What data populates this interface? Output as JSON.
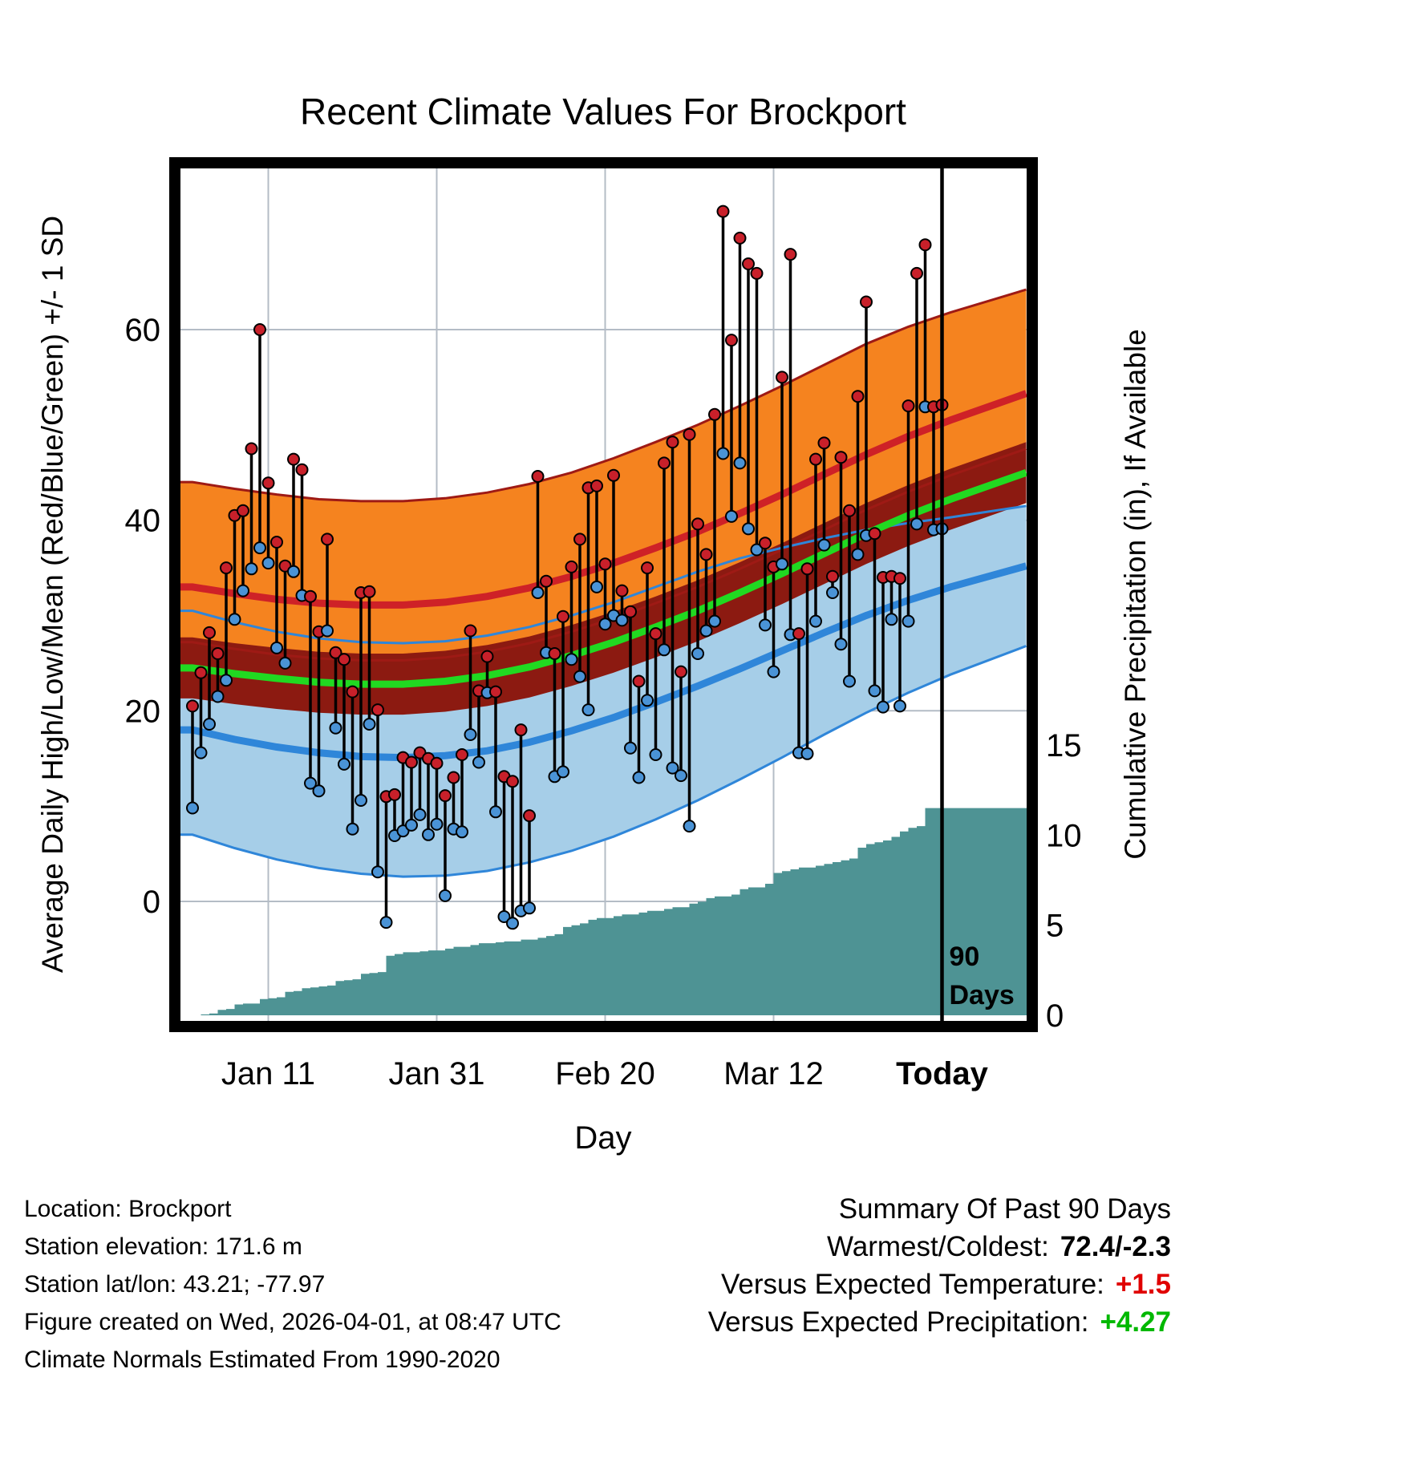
{
  "title": "Recent Climate Values For Brockport",
  "footer": {
    "left_lines": [
      "Location: Brockport",
      "Station elevation: 171.6 m",
      "Station lat/lon: 43.21; -77.97",
      "Figure created on Wed, 2026-04-01, at 08:47 UTC",
      "Climate Normals Estimated From 1990-2020"
    ],
    "summary": {
      "title": "Summary Of Past 90 Days",
      "warmest_label": "Warmest/Coldest:",
      "warmest_value": "72.4/-2.3",
      "temp_label": "Versus Expected Temperature:",
      "temp_value": "+1.5",
      "precip_label": "Versus Expected Precipitation:",
      "precip_value": "+4.27"
    }
  },
  "chart_data": {
    "type": "line",
    "title": "Recent Climate Values For Brockport",
    "xlabel": "Day",
    "ylabel_left": "Average Daily High/Low/Mean (Red/Blue/Green) +/- 1 SD",
    "ylabel_right": "Cumulative Precipitation (in), If Available",
    "left_ticks": [
      0,
      20,
      40,
      60
    ],
    "right_ticks": [
      0,
      5,
      10,
      15
    ],
    "x_ticks": [
      {
        "label": "Jan 11",
        "day": 9,
        "bold": false
      },
      {
        "label": "Jan 31",
        "day": 29,
        "bold": false
      },
      {
        "label": "Feb 20",
        "day": 49,
        "bold": false
      },
      {
        "label": "Mar 12",
        "day": 69,
        "bold": false
      },
      {
        "label": "Today",
        "day": 89,
        "bold": true
      }
    ],
    "temp_ylim": [
      -12.5,
      77
    ],
    "precip_ylim": [
      0,
      15
    ],
    "today_day": 89,
    "today_label_lines": [
      "90",
      "Days"
    ],
    "daily_high": [
      20.5,
      24.0,
      28.2,
      26.0,
      35.0,
      40.5,
      41.0,
      47.5,
      60.0,
      43.9,
      37.7,
      35.2,
      46.4,
      45.3,
      32.0,
      28.3,
      38.0,
      26.1,
      25.4,
      22.0,
      32.4,
      32.5,
      20.1,
      11.0,
      11.2,
      15.1,
      14.6,
      15.6,
      15.0,
      14.5,
      11.1,
      13.0,
      15.4,
      28.4,
      22.1,
      25.7,
      22.0,
      13.1,
      12.6,
      18.0,
      9.0,
      44.6,
      33.6,
      26.0,
      29.9,
      35.1,
      38.0,
      43.4,
      43.6,
      35.4,
      44.7,
      32.6,
      30.4,
      23.1,
      35.0,
      28.1,
      46.0,
      48.2,
      24.1,
      49.0,
      39.6,
      36.4,
      51.1,
      72.4,
      58.9,
      69.6,
      66.9,
      65.9,
      37.6,
      35.1,
      55.0,
      67.9,
      28.1,
      34.9,
      46.4,
      48.1,
      34.1,
      46.6,
      41.0,
      53.0,
      62.9,
      38.6,
      34.0,
      34.1,
      33.9,
      52.0,
      65.9,
      68.9,
      51.9,
      52.1
    ],
    "daily_low": [
      9.8,
      15.6,
      18.6,
      21.5,
      23.2,
      29.6,
      32.6,
      34.9,
      37.1,
      35.5,
      26.6,
      25.0,
      34.6,
      32.1,
      12.4,
      11.6,
      28.4,
      18.2,
      14.4,
      7.6,
      10.6,
      18.6,
      3.1,
      -2.2,
      6.9,
      7.4,
      8.0,
      9.1,
      7.0,
      8.1,
      0.6,
      7.6,
      7.3,
      17.5,
      14.6,
      21.9,
      9.4,
      -1.6,
      -2.3,
      -1.0,
      -0.7,
      32.4,
      26.1,
      13.1,
      13.6,
      25.4,
      23.6,
      20.1,
      33.0,
      29.1,
      30.0,
      29.5,
      16.1,
      13.0,
      21.1,
      15.4,
      26.4,
      14.0,
      13.2,
      7.9,
      26.0,
      28.4,
      29.4,
      47.0,
      40.4,
      46.0,
      39.1,
      36.9,
      29.0,
      24.1,
      35.4,
      28.0,
      15.6,
      15.5,
      29.4,
      37.4,
      32.4,
      27.0,
      23.1,
      36.4,
      38.4,
      22.1,
      20.4,
      29.6,
      20.5,
      29.4,
      39.6,
      51.9,
      39.0,
      39.1
    ],
    "cumulative_precip_in": [
      0,
      0.05,
      0.1,
      0.3,
      0.35,
      0.6,
      0.65,
      0.65,
      0.9,
      0.95,
      1.0,
      1.3,
      1.35,
      1.5,
      1.55,
      1.6,
      1.65,
      1.9,
      1.95,
      2.0,
      2.3,
      2.35,
      2.4,
      3.3,
      3.4,
      3.5,
      3.5,
      3.55,
      3.6,
      3.6,
      3.7,
      3.8,
      3.8,
      3.9,
      4.0,
      4.0,
      4.05,
      4.1,
      4.1,
      4.2,
      4.2,
      4.3,
      4.4,
      4.5,
      4.9,
      5.0,
      5.1,
      5.3,
      5.4,
      5.4,
      5.5,
      5.6,
      5.6,
      5.7,
      5.8,
      5.8,
      5.9,
      6.0,
      6.0,
      6.2,
      6.3,
      6.5,
      6.6,
      6.6,
      6.7,
      7.0,
      7.1,
      7.1,
      7.3,
      7.9,
      8.0,
      8.1,
      8.2,
      8.2,
      8.3,
      8.4,
      8.5,
      8.6,
      8.7,
      9.3,
      9.5,
      9.6,
      9.7,
      9.9,
      10.2,
      10.4,
      10.5,
      11.5,
      11.5,
      11.5
    ],
    "normals": {
      "days": [
        0,
        5,
        10,
        15,
        20,
        25,
        30,
        35,
        40,
        45,
        50,
        55,
        60,
        65,
        70,
        75,
        80,
        85,
        90,
        99
      ],
      "high_upper": [
        44.0,
        43.3,
        42.7,
        42.2,
        42.0,
        42.0,
        42.3,
        42.9,
        43.8,
        45.0,
        46.5,
        48.2,
        50.0,
        52.0,
        54.1,
        56.3,
        58.5,
        60.3,
        61.8,
        64.2
      ],
      "high_mean": [
        33.0,
        32.3,
        31.7,
        31.3,
        31.1,
        31.1,
        31.4,
        32.0,
        32.9,
        34.1,
        35.5,
        37.1,
        38.8,
        40.7,
        42.7,
        44.8,
        46.9,
        48.8,
        50.5,
        53.3
      ],
      "high_lower": [
        27.2,
        26.5,
        25.9,
        25.5,
        25.3,
        25.3,
        25.6,
        26.2,
        27.1,
        28.3,
        29.7,
        31.3,
        33.0,
        34.9,
        36.9,
        39.0,
        41.1,
        43.0,
        44.7,
        47.5
      ],
      "mean": [
        24.5,
        23.9,
        23.4,
        23.0,
        22.8,
        22.8,
        23.1,
        23.7,
        24.6,
        25.8,
        27.2,
        28.8,
        30.5,
        32.4,
        34.4,
        36.5,
        38.6,
        40.5,
        42.2,
        45.0
      ],
      "mean_upper": [
        27.7,
        27.1,
        26.6,
        26.2,
        26.0,
        26.0,
        26.3,
        26.9,
        27.8,
        29.0,
        30.4,
        32.0,
        33.7,
        35.6,
        37.6,
        39.7,
        41.8,
        43.7,
        45.4,
        48.2
      ],
      "mean_lower": [
        21.3,
        20.7,
        20.2,
        19.8,
        19.6,
        19.6,
        19.9,
        20.5,
        21.4,
        22.6,
        24.0,
        25.6,
        27.3,
        29.2,
        31.2,
        33.3,
        35.4,
        37.3,
        39.0,
        41.8
      ],
      "low_upper": [
        30.5,
        29.3,
        28.3,
        27.6,
        27.2,
        27.1,
        27.3,
        27.9,
        28.8,
        30.0,
        31.4,
        33.0,
        34.6,
        36.0,
        37.1,
        38.1,
        39.0,
        39.7,
        40.3,
        41.5
      ],
      "low_mean": [
        18.0,
        17.0,
        16.2,
        15.6,
        15.2,
        15.1,
        15.3,
        15.8,
        16.7,
        17.9,
        19.3,
        20.9,
        22.6,
        24.4,
        26.3,
        28.2,
        30.0,
        31.6,
        33.0,
        35.2
      ],
      "low_lower": [
        7.0,
        5.6,
        4.4,
        3.5,
        2.9,
        2.6,
        2.7,
        3.2,
        4.1,
        5.3,
        6.8,
        8.6,
        10.6,
        12.8,
        15.1,
        17.5,
        19.8,
        21.9,
        23.8,
        26.8
      ]
    },
    "colors": {
      "high_band": "#F5831F",
      "high_line": "#CE2127",
      "mean_band": "#8C1A11",
      "mean_line": "#21D921",
      "low_band": "#A6CEE8",
      "low_line": "#2F86D9",
      "band_edge_red": "#9E1A15",
      "band_edge_blue": "#2F86D9",
      "precip_fill": "#4E9394",
      "high_dot": "#C8202A",
      "low_dot": "#4A93D6",
      "stem": "#000000",
      "grid": "#b4bcc6"
    }
  }
}
